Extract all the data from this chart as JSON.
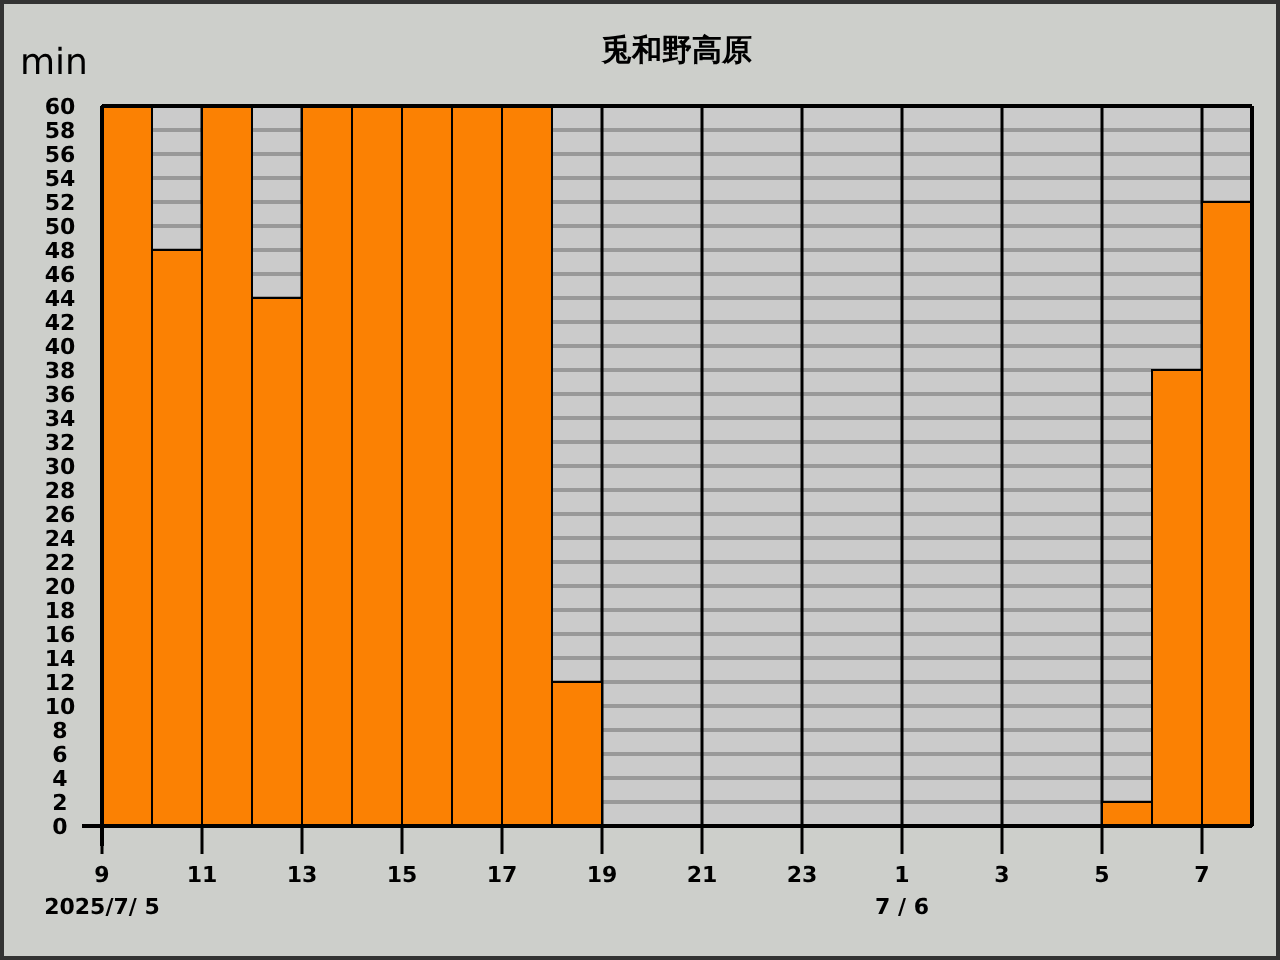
{
  "chart_data": {
    "type": "bar",
    "title": "兎和野高原",
    "ylabel": "min",
    "x": [
      "2025-07-05T09:30",
      "2025-07-05T10:30",
      "2025-07-05T11:30",
      "2025-07-05T12:30",
      "2025-07-05T13:30",
      "2025-07-05T14:30",
      "2025-07-05T15:30",
      "2025-07-05T16:30",
      "2025-07-05T17:30",
      "2025-07-05T18:30",
      "2025-07-05T19:30",
      "2025-07-05T20:30",
      "2025-07-05T21:30",
      "2025-07-05T22:30",
      "2025-07-05T23:30",
      "2025-07-06T00:30",
      "2025-07-06T01:30",
      "2025-07-06T02:30",
      "2025-07-06T03:30",
      "2025-07-06T04:30",
      "2025-07-06T05:30",
      "2025-07-06T06:30",
      "2025-07-06T07:30"
    ],
    "values": [
      60,
      48,
      60,
      44,
      60,
      60,
      60,
      60,
      60,
      12,
      0,
      0,
      0,
      0,
      0,
      0,
      0,
      0,
      0,
      0,
      2,
      38,
      52
    ],
    "color": "#fb8103",
    "xlim": [
      "2025-07-05T09:00",
      "2025-07-06T08:00"
    ],
    "xticks": [
      {
        "value": "2025-07-05T09:00",
        "label": "9"
      },
      {
        "value": "2025-07-05T11:00",
        "label": "11"
      },
      {
        "value": "2025-07-05T13:00",
        "label": "13"
      },
      {
        "value": "2025-07-05T15:00",
        "label": "15"
      },
      {
        "value": "2025-07-05T17:00",
        "label": "17"
      },
      {
        "value": "2025-07-05T19:00",
        "label": "19"
      },
      {
        "value": "2025-07-05T21:00",
        "label": "21"
      },
      {
        "value": "2025-07-05T23:00",
        "label": "23"
      },
      {
        "value": "2025-07-06T01:00",
        "label": "1"
      },
      {
        "value": "2025-07-06T03:00",
        "label": "3"
      },
      {
        "value": "2025-07-06T05:00",
        "label": "5"
      },
      {
        "value": "2025-07-06T07:00",
        "label": "7"
      }
    ],
    "ylim": [
      0,
      60
    ],
    "yticks": [
      0,
      2,
      4,
      6,
      8,
      10,
      12,
      14,
      16,
      18,
      20,
      22,
      24,
      26,
      28,
      30,
      32,
      34,
      36,
      38,
      40,
      42,
      44,
      46,
      48,
      50,
      52,
      54,
      56,
      58,
      60
    ],
    "grid": true,
    "annotations": [
      "2025/7/ 5",
      "7 / 6"
    ]
  }
}
